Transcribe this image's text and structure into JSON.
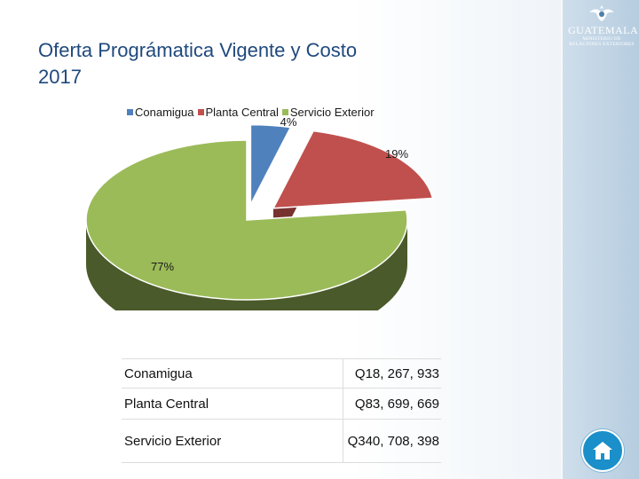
{
  "slide": {
    "title_line1": "Oferta Prográmatica Vigente y Costo",
    "title_line2": "2017",
    "logo": {
      "main": "GUATEMALA",
      "sub_line1": "MINISTERIO DE",
      "sub_line2": "RELACIONES EXTERIORES"
    }
  },
  "colors": {
    "title": "#1f497d",
    "conamigua": "#4f81bd",
    "planta_central": "#c0504d",
    "servicio_exterior": "#9bbb59",
    "home_button": "#1b8fc9"
  },
  "chart_data": {
    "type": "pie",
    "style": "3d-exploded",
    "categories": [
      "Conamigua",
      "Planta Central",
      "Servicio Exterior"
    ],
    "values": [
      4,
      19,
      77
    ],
    "labels": [
      "4%",
      "19%",
      "77%"
    ],
    "legend_position": "top",
    "title": ""
  },
  "table": {
    "rows": [
      {
        "name": "Conamigua",
        "value": "Q18, 267, 933"
      },
      {
        "name": "Planta Central",
        "value": "Q83, 699, 669"
      },
      {
        "name": "Servicio Exterior",
        "value": "Q340, 708, 398"
      }
    ]
  },
  "nav": {
    "home_icon": "home-icon"
  }
}
